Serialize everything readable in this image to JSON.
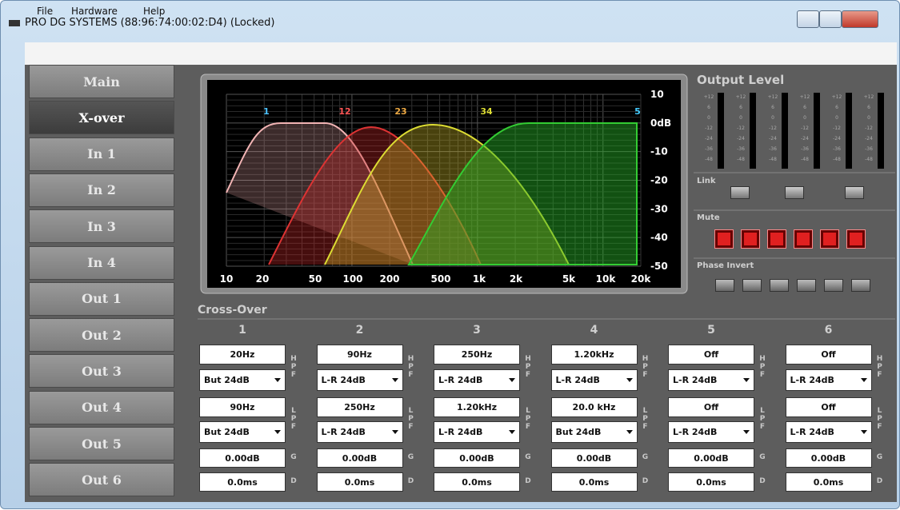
{
  "window": {
    "title": "PRO DG SYSTEMS (88:96:74:00:02:D4) (Locked)"
  },
  "menu": [
    "File",
    "Hardware",
    "Help"
  ],
  "nav": [
    "Main",
    "X-over",
    "In 1",
    "In 2",
    "In 3",
    "In 4",
    "Out 1",
    "Out 2",
    "Out 3",
    "Out 4",
    "Out 5",
    "Out 6"
  ],
  "graph": {
    "y_labels": [
      "10",
      "0dB",
      "-10",
      "-20",
      "-30",
      "-40",
      "-50"
    ],
    "x_labels": [
      "10",
      "20",
      "50",
      "100",
      "200",
      "500",
      "1k",
      "2k",
      "5k",
      "10k",
      "20k"
    ],
    "markers": [
      "1",
      "12",
      "23",
      "34",
      "5"
    ]
  },
  "output": {
    "title": "Output Level",
    "scale": [
      "+12",
      "6",
      "0",
      "-12",
      "-24",
      "-36",
      "-48"
    ],
    "link": "Link",
    "mute": "Mute",
    "phase": "Phase Invert"
  },
  "crossover": {
    "title": "Cross-Over",
    "hpf_label": "HPF",
    "lpf_label": "LPF",
    "gain_label": "G",
    "delay_label": "D",
    "channels": [
      {
        "name": "1",
        "hpf": "20Hz",
        "hpf_type": "But 24dB",
        "lpf": "90Hz",
        "lpf_type": "But 24dB",
        "gain": "0.00dB",
        "delay": "0.0ms"
      },
      {
        "name": "2",
        "hpf": "90Hz",
        "hpf_type": "L-R 24dB",
        "lpf": "250Hz",
        "lpf_type": "L-R 24dB",
        "gain": "0.00dB",
        "delay": "0.0ms"
      },
      {
        "name": "3",
        "hpf": "250Hz",
        "hpf_type": "L-R 24dB",
        "lpf": "1.20kHz",
        "lpf_type": "L-R 24dB",
        "gain": "0.00dB",
        "delay": "0.0ms"
      },
      {
        "name": "4",
        "hpf": "1.20kHz",
        "hpf_type": "L-R 24dB",
        "lpf": "20.0 kHz",
        "lpf_type": "But 24dB",
        "gain": "0.00dB",
        "delay": "0.0ms"
      },
      {
        "name": "5",
        "hpf": "Off",
        "hpf_type": "L-R 24dB",
        "lpf": "Off",
        "lpf_type": "L-R 24dB",
        "gain": "0.00dB",
        "delay": "0.0ms"
      },
      {
        "name": "6",
        "hpf": "Off",
        "hpf_type": "L-R 24dB",
        "lpf": "Off",
        "lpf_type": "L-R 24dB",
        "gain": "0.00dB",
        "delay": "0.0ms"
      }
    ]
  }
}
